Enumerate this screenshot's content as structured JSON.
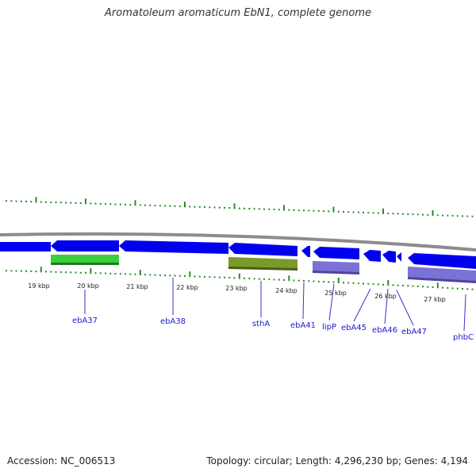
{
  "title": "Aromatoleum aromaticum EbN1, complete genome",
  "footer": {
    "accession": "Accession: NC_006513",
    "summary": "Topology: circular; Length: 4,296,230 bp; Genes: 4,194"
  },
  "colors": {
    "backbone": "#8c8c8c",
    "gene_forward": "#0000ee",
    "ticks": "#2a8a2a",
    "label_line": "#3333cc",
    "label_text": "#1a1acc",
    "feature_green": "#3ccf3c",
    "feature_olive": "#7a9a2a",
    "feature_purple": "#7b72d6"
  },
  "kbp_labels": [
    "19 kbp",
    "20 kbp",
    "21 kbp",
    "22 kbp",
    "23 kbp",
    "24 kbp",
    "25 kbp",
    "26 kbp",
    "27 kbp"
  ],
  "gene_labels": [
    "ebA37",
    "ebA38",
    "sthA",
    "ebA41",
    "lipP",
    "ebA45",
    "ebA46",
    "ebA47",
    "phbC"
  ]
}
